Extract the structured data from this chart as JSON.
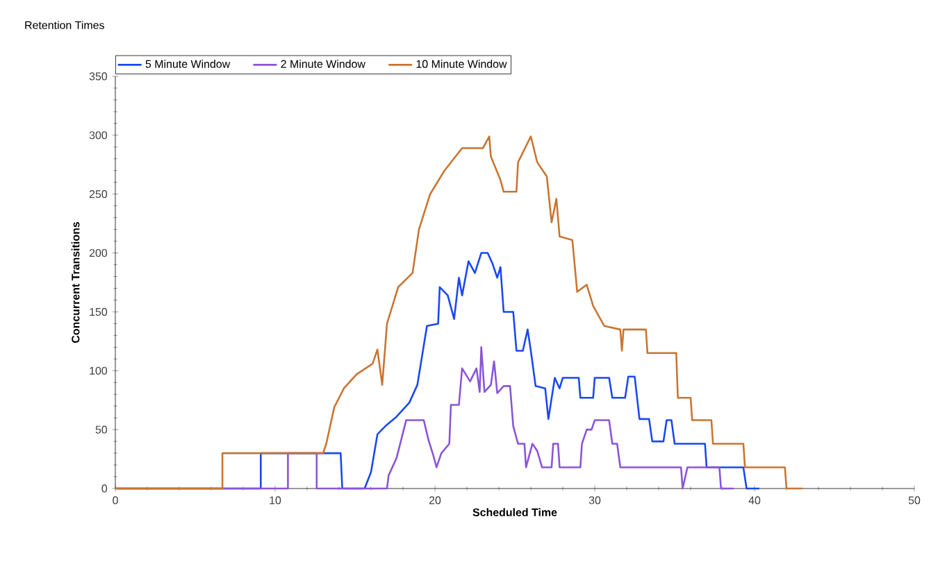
{
  "chart_data": {
    "type": "line",
    "title": "Retention Times",
    "xlabel": "Scheduled Time",
    "ylabel": "Concurrent Transitions",
    "xlim": [
      0,
      50
    ],
    "xticks": [
      0,
      10,
      20,
      30,
      40,
      50
    ],
    "ylim": [
      0,
      350
    ],
    "yticks": [
      0,
      50,
      100,
      150,
      200,
      250,
      300,
      350
    ],
    "grid": false,
    "legend": "top",
    "marker": "none",
    "line_style": "solid",
    "series": [
      {
        "name": "5 Minute Window",
        "color": "#1a48f0",
        "x": [
          0,
          9.1,
          9.1,
          14.1,
          14.2,
          15.6,
          16.0,
          16.4,
          16.9,
          17.6,
          18.4,
          18.9,
          19.5,
          20.2,
          20.3,
          20.8,
          21.2,
          21.5,
          21.7,
          22.1,
          22.5,
          22.9,
          23.3,
          23.6,
          23.9,
          24.1,
          24.3,
          24.9,
          25.1,
          25.5,
          25.8,
          26.0,
          26.3,
          26.9,
          27.1,
          27.5,
          27.8,
          28.0,
          29.0,
          29.1,
          29.9,
          30.0,
          30.9,
          31.1,
          31.9,
          32.1,
          32.5,
          32.8,
          33.4,
          33.6,
          34.3,
          34.5,
          34.8,
          35.0,
          36.9,
          37.0,
          39.3,
          39.5,
          40.3
        ],
        "values": [
          0,
          0,
          30,
          30,
          0,
          0,
          14,
          46,
          53,
          61,
          73,
          88,
          138,
          140,
          171,
          164,
          144,
          179,
          164,
          193,
          183,
          200,
          200,
          191,
          179,
          188,
          150,
          150,
          117,
          117,
          135,
          117,
          87,
          85,
          59,
          94,
          85,
          94,
          94,
          77,
          77,
          94,
          94,
          77,
          77,
          95,
          95,
          59,
          59,
          40,
          40,
          58,
          58,
          38,
          38,
          18,
          18,
          0,
          0
        ]
      },
      {
        "name": "2 Minute Window",
        "color": "#8a55d6",
        "x": [
          0,
          10.8,
          10.8,
          12.6,
          12.6,
          17.0,
          17.1,
          17.6,
          18.2,
          19.3,
          19.6,
          19.9,
          20.1,
          20.4,
          20.9,
          21.0,
          21.5,
          21.7,
          22.2,
          22.6,
          22.8,
          22.9,
          23.1,
          23.5,
          23.7,
          23.9,
          24.3,
          24.7,
          24.9,
          25.2,
          25.6,
          25.7,
          26.1,
          26.4,
          26.7,
          27.3,
          27.4,
          27.7,
          27.8,
          29.1,
          29.2,
          29.5,
          29.8,
          30.0,
          30.9,
          31.1,
          31.4,
          31.6,
          35.4,
          35.5,
          35.8,
          37.8,
          37.9,
          38.7
        ],
        "values": [
          0,
          0,
          30,
          30,
          0,
          0,
          11,
          26,
          58,
          58,
          41,
          28,
          18,
          30,
          38,
          71,
          71,
          102,
          91,
          102,
          82,
          120,
          82,
          88,
          108,
          81,
          87,
          87,
          53,
          38,
          38,
          18,
          38,
          32,
          18,
          18,
          38,
          38,
          18,
          18,
          38,
          50,
          50,
          58,
          58,
          38,
          38,
          18,
          18,
          0,
          18,
          18,
          0,
          0
        ]
      },
      {
        "name": "10 Minute Window",
        "color": "#c87533",
        "x": [
          0,
          6.7,
          6.7,
          13.0,
          13.2,
          13.7,
          14.3,
          15.1,
          16.1,
          16.4,
          16.7,
          17.0,
          17.7,
          18.6,
          19.0,
          19.7,
          20.6,
          21.7,
          23.0,
          23.4,
          23.5,
          24.1,
          24.3,
          25.1,
          25.2,
          26.0,
          26.4,
          27.0,
          27.3,
          27.6,
          27.8,
          28.6,
          28.9,
          29.5,
          29.9,
          30.6,
          31.6,
          31.7,
          31.8,
          33.2,
          33.3,
          35.1,
          35.2,
          36.0,
          36.1,
          37.3,
          37.4,
          39.3,
          39.4,
          41.9,
          42.0,
          43.0
        ],
        "values": [
          0,
          0,
          30,
          30,
          38,
          69,
          85,
          97,
          106,
          118,
          88,
          140,
          171,
          183,
          220,
          250,
          270,
          289,
          289,
          299,
          282,
          262,
          252,
          252,
          277,
          299,
          277,
          265,
          226,
          246,
          214,
          211,
          167,
          173,
          155,
          138,
          135,
          117,
          135,
          135,
          115,
          115,
          77,
          77,
          58,
          58,
          38,
          38,
          18,
          18,
          0,
          0
        ]
      }
    ]
  }
}
